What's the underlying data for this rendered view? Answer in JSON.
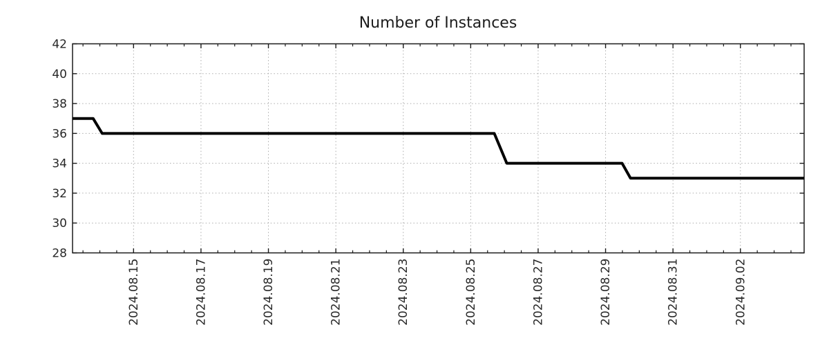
{
  "chart_data": {
    "type": "line",
    "title": "Number of Instances",
    "xlabel": "",
    "ylabel": "",
    "ylim": [
      28,
      42
    ],
    "yticks": [
      28,
      30,
      32,
      34,
      36,
      38,
      40,
      42
    ],
    "x_axis": {
      "unit": "days relative to 2024.08.15 00:00",
      "range": [
        -1.81,
        19.89
      ],
      "major_ticks": [
        {
          "t": 0,
          "label": "2024.08.15"
        },
        {
          "t": 2,
          "label": "2024.08.17"
        },
        {
          "t": 4,
          "label": "2024.08.19"
        },
        {
          "t": 6,
          "label": "2024.08.21"
        },
        {
          "t": 8,
          "label": "2024.08.23"
        },
        {
          "t": 10,
          "label": "2024.08.25"
        },
        {
          "t": 12,
          "label": "2024.08.27"
        },
        {
          "t": 14,
          "label": "2024.08.29"
        },
        {
          "t": 16,
          "label": "2024.08.31"
        },
        {
          "t": 18,
          "label": "2024.09.02"
        }
      ],
      "minor_tick_step": 0.5,
      "label_rotation_deg": -90
    },
    "series": [
      {
        "name": "number-of-instances",
        "color": "#000000",
        "line_width": 4,
        "points": [
          [
            -1.81,
            37
          ],
          [
            -1.2,
            37
          ],
          [
            -0.93,
            36
          ],
          [
            10.7,
            36
          ],
          [
            11.07,
            34
          ],
          [
            14.49,
            34
          ],
          [
            14.74,
            33
          ],
          [
            19.89,
            33
          ]
        ]
      }
    ],
    "grid": {
      "show": true,
      "color": "#ababab",
      "style": "dotted"
    },
    "colors": {
      "background": "#ffffff",
      "axis_border": "#1a1a1a",
      "tick_label": "#282828",
      "title": "#1c1c1c"
    },
    "legend": {
      "show": false
    }
  }
}
